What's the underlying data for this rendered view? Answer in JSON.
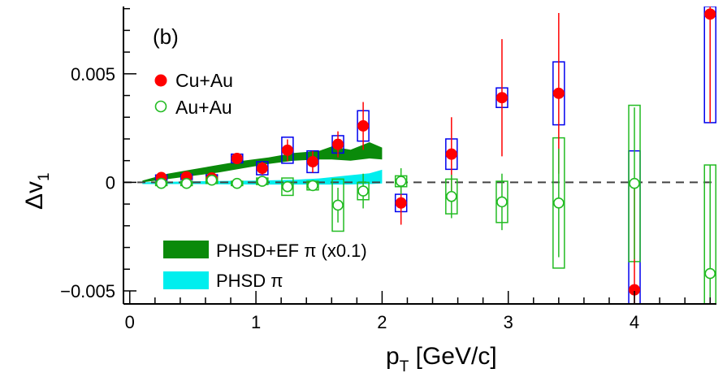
{
  "chart_data": {
    "type": "scatter",
    "panel_label": "(b)",
    "xlabel": "p",
    "xlabel_sub": "T",
    "xlabel_unit": " [GeV/c]",
    "ylabel": "Δv",
    "ylabel_sub": "1",
    "xlim": [
      -0.05,
      4.65
    ],
    "ylim": [
      -0.0056,
      0.0081
    ],
    "x_ticks": [
      {
        "value": 0,
        "label": "0"
      },
      {
        "value": 1,
        "label": "1"
      },
      {
        "value": 2,
        "label": "2"
      },
      {
        "value": 3,
        "label": "3"
      },
      {
        "value": 4,
        "label": "4"
      }
    ],
    "y_ticks": [
      {
        "value": 0.005,
        "label": "0.005"
      },
      {
        "value": 0,
        "label": "0"
      },
      {
        "value": -0.005,
        "label": "−0.005"
      }
    ],
    "zero_line": true,
    "legend_placement": "top-left",
    "series": [
      {
        "name": "Cu+Au",
        "marker": "filled-circle",
        "color": "#ff0000",
        "sys_box_color": "#0000ee",
        "points": [
          {
            "x": 0.25,
            "y": 0.00022,
            "stat": 0.0001,
            "sys": 0.00012
          },
          {
            "x": 0.45,
            "y": 0.00025,
            "stat": 0.0001,
            "sys": 0.00012
          },
          {
            "x": 0.65,
            "y": 0.0002,
            "stat": 0.00012,
            "sys": 0.00015
          },
          {
            "x": 0.85,
            "y": 0.0011,
            "stat": 0.0002,
            "sys": 0.0002
          },
          {
            "x": 1.05,
            "y": 0.00065,
            "stat": 0.0003,
            "sys": 0.0003
          },
          {
            "x": 1.25,
            "y": 0.00148,
            "stat": 0.0005,
            "sys": 0.0006
          },
          {
            "x": 1.45,
            "y": 0.00095,
            "stat": 0.0005,
            "sys": 0.0005
          },
          {
            "x": 1.65,
            "y": 0.00175,
            "stat": 0.0006,
            "sys": 0.0004
          },
          {
            "x": 1.85,
            "y": 0.0026,
            "stat": 0.0011,
            "sys": 0.0007
          },
          {
            "x": 2.15,
            "y": -0.00095,
            "stat": 0.001,
            "sys": 0.0004
          },
          {
            "x": 2.55,
            "y": 0.0013,
            "stat": 0.0017,
            "sys": 0.0007
          },
          {
            "x": 2.95,
            "y": 0.0039,
            "stat": 0.0027,
            "sys": 0.00045
          },
          {
            "x": 3.4,
            "y": 0.0041,
            "stat": 0.0037,
            "sys": 0.00145
          },
          {
            "x": 4.0,
            "y": -0.00495,
            "stat": 0.005,
            "sys": 0.0064
          },
          {
            "x": 4.6,
            "y": 0.00775,
            "stat": 0.005,
            "sys": 0.005
          }
        ]
      },
      {
        "name": "Au+Au",
        "marker": "open-circle",
        "color": "#22bb22",
        "sys_box_color": "#22bb22",
        "points": [
          {
            "x": 0.25,
            "y": -5e-05,
            "stat": 8e-05,
            "sys": 0.0001
          },
          {
            "x": 0.45,
            "y": -5e-05,
            "stat": 8e-05,
            "sys": 0.0001
          },
          {
            "x": 0.65,
            "y": 0.0001,
            "stat": 0.0001,
            "sys": 0.00015
          },
          {
            "x": 0.85,
            "y": -5e-05,
            "stat": 0.00012,
            "sys": 0.0001
          },
          {
            "x": 1.05,
            "y": 5e-05,
            "stat": 0.00015,
            "sys": 0.00015
          },
          {
            "x": 1.25,
            "y": -0.0002,
            "stat": 0.0002,
            "sys": 0.0004
          },
          {
            "x": 1.45,
            "y": -0.00015,
            "stat": 0.0002,
            "sys": 0.0002
          },
          {
            "x": 1.65,
            "y": -0.00105,
            "stat": 0.0008,
            "sys": 0.0012
          },
          {
            "x": 1.85,
            "y": -0.0004,
            "stat": 0.0008,
            "sys": 0.0004
          },
          {
            "x": 2.15,
            "y": 5e-05,
            "stat": 0.0006,
            "sys": 0.00025
          },
          {
            "x": 2.55,
            "y": -0.00065,
            "stat": 0.001,
            "sys": 0.0008
          },
          {
            "x": 2.95,
            "y": -0.0009,
            "stat": 0.0013,
            "sys": 0.00095
          },
          {
            "x": 3.4,
            "y": -0.00095,
            "stat": 0.0025,
            "sys": 0.003
          },
          {
            "x": 4.0,
            "y": -5e-05,
            "stat": 0.0035,
            "sys": 0.0036
          },
          {
            "x": 4.6,
            "y": -0.0042,
            "stat": 0.005,
            "sys": 0.005
          }
        ]
      }
    ],
    "bands": [
      {
        "name": "PHSD+EF π (x0.1)",
        "color": "#0a8a0a",
        "x": [
          0.1,
          0.3,
          0.5,
          0.7,
          0.9,
          1.1,
          1.3,
          1.5,
          1.6,
          1.75,
          1.9,
          2.0
        ],
        "lower": [
          0.0,
          0.00015,
          0.0003,
          0.00045,
          0.00065,
          0.00085,
          0.001,
          0.00105,
          0.00105,
          0.001,
          0.0011,
          0.00105
        ],
        "upper": [
          8e-05,
          0.0004,
          0.0006,
          0.0008,
          0.001,
          0.00115,
          0.00135,
          0.00145,
          0.00165,
          0.0015,
          0.00185,
          0.0016
        ]
      },
      {
        "name": "PHSD π",
        "color": "#00eeee",
        "x": [
          0.1,
          0.5,
          1.0,
          1.3,
          1.5,
          1.7,
          1.9,
          2.0
        ],
        "lower": [
          -8e-05,
          -8e-05,
          -0.0001,
          -0.0001,
          -0.0001,
          -0.0001,
          -8e-05,
          -5e-05
        ],
        "upper": [
          0.0,
          5e-05,
          8e-05,
          0.00012,
          0.00018,
          0.0003,
          0.00042,
          0.00058
        ]
      }
    ]
  }
}
